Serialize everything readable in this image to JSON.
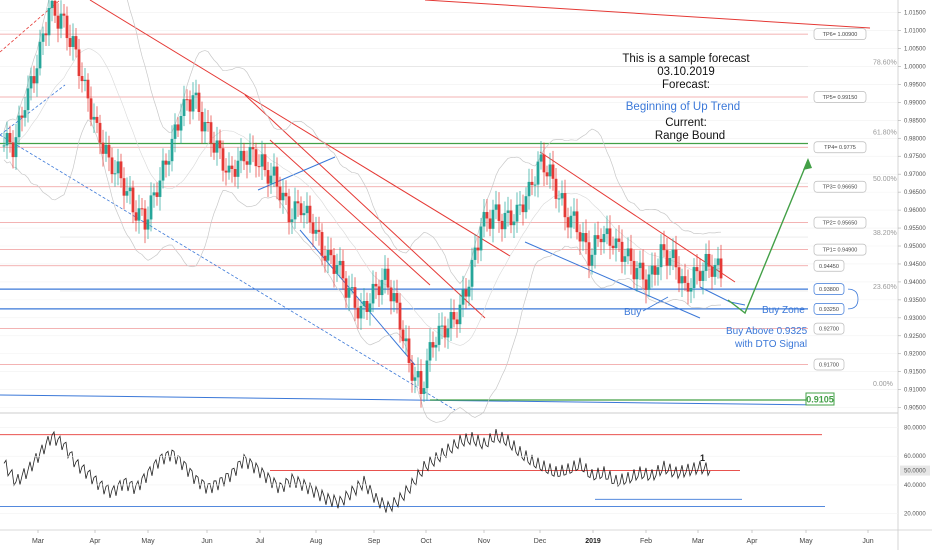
{
  "forecast": {
    "line1": "This is a sample forecast",
    "line2": "03.10.2019",
    "line3": "Forecast:",
    "line4": "Beginning of Up Trend",
    "line5": "Current:",
    "line6": "Range Bound"
  },
  "annotations": {
    "buy": "Buy",
    "buy_zone": "Buy Zone",
    "buy_above_1": "Buy Above 0.9325",
    "buy_above_2": "with DTO Signal",
    "osc_marker": "1"
  },
  "colors": {
    "bull": "#26a69a",
    "bear": "#e53935",
    "accent_blue": "#3b78d8",
    "fib_green": "#43a047",
    "trend_red": "#e53935"
  },
  "chart_data": [
    {
      "type": "candlestick",
      "price_axis": [
        "1.01500",
        "1.01000",
        "1.00500",
        "1.00000",
        "0.99500",
        "0.99000",
        "0.98500",
        "0.98000",
        "0.97500",
        "0.97000",
        "0.96500",
        "0.96000",
        "0.95500",
        "0.95000",
        "0.94500",
        "0.94000",
        "0.93500",
        "0.93000",
        "0.92500",
        "0.92000",
        "0.91500",
        "0.91000",
        "0.90500"
      ],
      "ylim": [
        0.9035,
        1.0185
      ],
      "time_axis": [
        "Mar",
        "Apr",
        "May",
        "Jun",
        "Jul",
        "Aug",
        "Sep",
        "Oct",
        "Nov",
        "Dec",
        "2019",
        "Feb",
        "Mar",
        "Apr",
        "May",
        "Jun"
      ],
      "levels": [
        {
          "label": "TP6= 1.00900",
          "value": 1.009
        },
        {
          "label": "TP5= 0.99150",
          "value": 0.9915
        },
        {
          "label": "TP4= 0.9775",
          "value": 0.9775
        },
        {
          "label": "TP3= 0.96650",
          "value": 0.9665
        },
        {
          "label": "TP2= 0.95650",
          "value": 0.9565
        },
        {
          "label": "TP1= 0.94900",
          "value": 0.949
        },
        {
          "label": "0.94450",
          "value": 0.9445
        },
        {
          "label": "0.93800",
          "value": 0.938
        },
        {
          "label": "0.93250",
          "value": 0.9325
        },
        {
          "label": "0.92700",
          "value": 0.927
        },
        {
          "label": "0.91700",
          "value": 0.917
        }
      ],
      "fib_levels": [
        {
          "label": "78.60%",
          "value": 1.0
        },
        {
          "label": "61.80%",
          "value": 0.9805
        },
        {
          "label": "50.00%",
          "value": 0.9675
        },
        {
          "label": "38.20%",
          "value": 0.9525
        },
        {
          "label": "23.60%",
          "value": 0.9375
        },
        {
          "label": "0.00%",
          "value": 0.9105
        }
      ],
      "low_marker": "0.9105",
      "closes": [
        0.978,
        0.99,
        1.0,
        1.015,
        1.012,
        1.005,
        0.993,
        0.982,
        0.974,
        0.97,
        0.962,
        0.958,
        0.967,
        0.976,
        0.987,
        0.991,
        0.982,
        0.976,
        0.969,
        0.974,
        0.976,
        0.972,
        0.969,
        0.96,
        0.962,
        0.956,
        0.947,
        0.944,
        0.936,
        0.93,
        0.936,
        0.941,
        0.933,
        0.918,
        0.911,
        0.925,
        0.928,
        0.931,
        0.94,
        0.955,
        0.958,
        0.956,
        0.958,
        0.965,
        0.974,
        0.969,
        0.96,
        0.957,
        0.948,
        0.954,
        0.951,
        0.947,
        0.942,
        0.939,
        0.947,
        0.946,
        0.938,
        0.943,
        0.946,
        0.944
      ]
    },
    {
      "type": "line",
      "name": "Oscillator",
      "y_axis": [
        "80.0000",
        "60.0000",
        "40.0000",
        "20.0000"
      ],
      "current_value": "50.0000",
      "ylim": [
        10,
        88
      ],
      "values": [
        55,
        42,
        50,
        62,
        74,
        68,
        55,
        48,
        40,
        35,
        42,
        38,
        48,
        58,
        62,
        54,
        44,
        38,
        42,
        48,
        58,
        52,
        45,
        38,
        44,
        40,
        35,
        30,
        28,
        35,
        42,
        30,
        24,
        30,
        40,
        52,
        58,
        64,
        70,
        72,
        68,
        74,
        70,
        62,
        56,
        52,
        48,
        50,
        54,
        46,
        48,
        42,
        44,
        48,
        46,
        52,
        48,
        50,
        52,
        50
      ]
    }
  ]
}
